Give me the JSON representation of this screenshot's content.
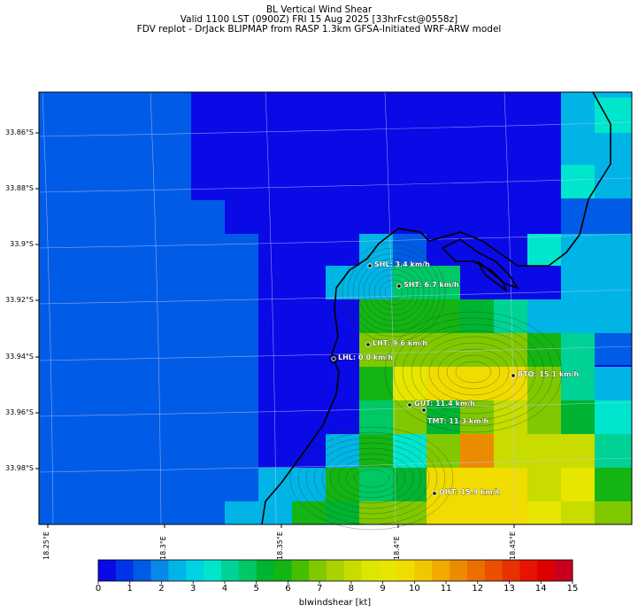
{
  "header": {
    "title": "BL Vertical Wind Shear",
    "subtitle1": "Valid 1100 LST (0900Z) FRI 15 Aug 2025 [33hrFcst@0558z]",
    "subtitle2": "FDV replot - DrJack BLIPMAP from RASP 1.3km GFSA-Initiated WRF-ARW model"
  },
  "axes": {
    "lat_labels": [
      "33.86°S",
      "33.88°S",
      "33.9°S",
      "33.92°S",
      "33.94°S",
      "33.96°S",
      "33.98°S"
    ],
    "lon_labels": [
      "18.25°E",
      "18.3°E",
      "18.35°E",
      "18.4°E",
      "18.45°E"
    ]
  },
  "stations": [
    {
      "code": "SHL",
      "label": "SHL: 3.4 km/h",
      "value_kmh": 3.4
    },
    {
      "code": "SHT",
      "label": "SHT: 6.7 km/h",
      "value_kmh": 6.7
    },
    {
      "code": "LHT",
      "label": "LHT: 9.6 km/h",
      "value_kmh": 9.6
    },
    {
      "code": "LHL",
      "label": "LHL: 0.0 km/h",
      "value_kmh": 0.0
    },
    {
      "code": "BTO",
      "label": "BTO: 15.1 km/h",
      "value_kmh": 15.1
    },
    {
      "code": "GUT",
      "label": "GUT: 11.4 km/h",
      "value_kmh": 11.4
    },
    {
      "code": "TMT",
      "label": "TMT: 11.3 km/h",
      "value_kmh": 11.3
    },
    {
      "code": "OHT",
      "label": "OHT: 15.9 km/h",
      "value_kmh": 15.9
    }
  ],
  "colorbar": {
    "label": "blwindshear [kt]",
    "ticks": [
      "0",
      "1",
      "2",
      "3",
      "4",
      "5",
      "6",
      "7",
      "8",
      "9",
      "10",
      "11",
      "12",
      "13",
      "14",
      "15"
    ],
    "colors": [
      "#0a0ae6",
      "#0034e8",
      "#005ce6",
      "#0a88ea",
      "#00b4e6",
      "#00d2e6",
      "#00e6cc",
      "#00d296",
      "#00c864",
      "#00b432",
      "#14b414",
      "#46be00",
      "#82c800",
      "#aad200",
      "#c8dc00",
      "#dce600",
      "#e6e600",
      "#f0dc00",
      "#f0c800",
      "#f0aa00",
      "#eb8c00",
      "#eb6e00",
      "#eb5000",
      "#e63200",
      "#e61400",
      "#dc0000",
      "#c8001e"
    ]
  }
}
